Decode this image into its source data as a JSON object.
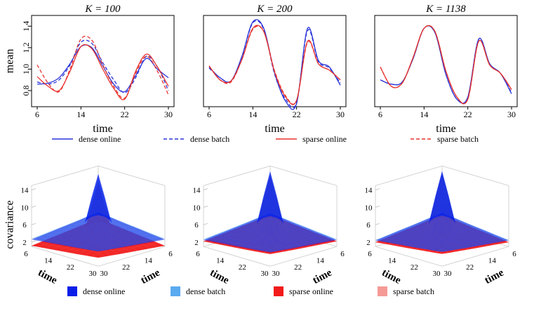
{
  "chart_data": [
    {
      "type": "line",
      "title": "K = 100",
      "xlabel": "time",
      "ylabel": "mean",
      "xlim": [
        6,
        30
      ],
      "ylim": [
        0.65,
        1.5
      ],
      "xticks": [
        "6",
        "14",
        "22",
        "30"
      ],
      "yticks": [
        "0.8",
        "1.0",
        "1.2",
        "1.4"
      ],
      "x": [
        6,
        8,
        10,
        12,
        14,
        16,
        18,
        20,
        22,
        24,
        26,
        28,
        30
      ],
      "series": [
        {
          "name": "dense online",
          "values": [
            0.86,
            0.87,
            0.92,
            1.05,
            1.21,
            1.2,
            1.03,
            0.86,
            0.79,
            0.94,
            1.1,
            1.0,
            0.92
          ]
        },
        {
          "name": "dense batch",
          "values": [
            0.88,
            0.86,
            0.9,
            1.04,
            1.25,
            1.24,
            1.06,
            0.9,
            0.78,
            0.92,
            1.12,
            1.02,
            0.8
          ]
        },
        {
          "name": "sparse online",
          "values": [
            0.93,
            0.84,
            0.8,
            0.98,
            1.21,
            1.19,
            1.0,
            0.82,
            0.72,
            0.98,
            1.14,
            1.02,
            0.84
          ]
        },
        {
          "name": "sparse batch",
          "values": [
            1.04,
            0.87,
            0.79,
            1.0,
            1.28,
            1.27,
            1.04,
            0.84,
            0.73,
            0.96,
            1.12,
            0.98,
            0.76
          ]
        }
      ]
    },
    {
      "type": "line",
      "title": "K = 200",
      "xlabel": "time",
      "xlim": [
        6,
        30
      ],
      "ylim": [
        0.65,
        1.5
      ],
      "xticks": [
        "6",
        "14",
        "22",
        "30"
      ],
      "x": [
        6,
        8,
        10,
        12,
        14,
        16,
        18,
        20,
        22,
        24,
        26,
        28,
        30
      ],
      "series": [
        {
          "name": "dense online",
          "values": [
            1.02,
            0.92,
            0.89,
            1.12,
            1.44,
            1.38,
            0.96,
            0.7,
            0.68,
            1.38,
            1.08,
            1.02,
            0.85
          ]
        },
        {
          "name": "dense batch",
          "values": [
            1.01,
            0.92,
            0.89,
            1.11,
            1.43,
            1.37,
            0.95,
            0.72,
            0.69,
            1.36,
            1.07,
            1.01,
            0.87
          ]
        },
        {
          "name": "sparse online",
          "values": [
            1.03,
            0.9,
            0.89,
            1.09,
            1.38,
            1.35,
            0.97,
            0.74,
            0.71,
            1.26,
            1.05,
            0.99,
            0.9
          ]
        },
        {
          "name": "sparse batch",
          "values": [
            1.03,
            0.9,
            0.88,
            1.09,
            1.37,
            1.35,
            0.98,
            0.75,
            0.71,
            1.25,
            1.05,
            0.99,
            0.9
          ]
        }
      ]
    },
    {
      "type": "line",
      "title": "K = 1138",
      "xlabel": "time",
      "xlim": [
        6,
        30
      ],
      "ylim": [
        0.65,
        1.5
      ],
      "xticks": [
        "6",
        "14",
        "22",
        "30"
      ],
      "x": [
        6,
        8,
        10,
        12,
        14,
        16,
        18,
        20,
        22,
        24,
        26,
        28,
        30
      ],
      "series": [
        {
          "name": "dense online",
          "values": [
            0.9,
            0.86,
            0.88,
            1.1,
            1.38,
            1.34,
            0.95,
            0.72,
            0.74,
            1.28,
            1.05,
            0.96,
            0.77
          ]
        },
        {
          "name": "dense batch",
          "values": [
            0.9,
            0.86,
            0.88,
            1.1,
            1.38,
            1.34,
            0.95,
            0.72,
            0.74,
            1.28,
            1.05,
            0.96,
            0.78
          ]
        },
        {
          "name": "sparse online",
          "values": [
            1.02,
            0.84,
            0.87,
            1.11,
            1.38,
            1.35,
            0.98,
            0.74,
            0.72,
            1.26,
            1.04,
            0.96,
            0.81
          ]
        },
        {
          "name": "sparse batch",
          "values": [
            1.02,
            0.84,
            0.87,
            1.11,
            1.38,
            1.35,
            0.98,
            0.74,
            0.72,
            1.26,
            1.04,
            0.96,
            0.81
          ]
        }
      ]
    },
    {
      "type": "surface3d",
      "zlabel": "covariance",
      "axis_label": "time",
      "zticks": [
        "2",
        "6",
        "10",
        "14"
      ],
      "axis_ticks": [
        "6",
        "14",
        "22",
        "30"
      ],
      "x": [
        6,
        14,
        22,
        30
      ],
      "y": [
        6,
        14,
        22,
        30
      ],
      "series": [
        {
          "name": "dense online",
          "peak": 13,
          "shoulder": 7.5,
          "edge": 2.6
        },
        {
          "name": "dense batch",
          "peak": 12.5,
          "shoulder": 7.2,
          "edge": 2.8
        },
        {
          "name": "sparse online",
          "peak": 11,
          "shoulder": 6,
          "edge": 1.2
        },
        {
          "name": "sparse batch",
          "peak": 11,
          "shoulder": 6,
          "edge": 1.2
        }
      ]
    },
    {
      "type": "surface3d",
      "axis_label": "time",
      "zticks": [
        "2",
        "6",
        "10",
        "14"
      ],
      "axis_ticks": [
        "6",
        "14",
        "22",
        "30"
      ],
      "x": [
        6,
        14,
        22,
        30
      ],
      "y": [
        6,
        14,
        22,
        30
      ],
      "series": [
        {
          "name": "dense online",
          "peak": 14,
          "shoulder": 7,
          "edge": 2.5
        },
        {
          "name": "dense batch",
          "peak": 13.5,
          "shoulder": 7,
          "edge": 2.7
        },
        {
          "name": "sparse online",
          "peak": 13,
          "shoulder": 6.5,
          "edge": 2.2
        },
        {
          "name": "sparse batch",
          "peak": 13,
          "shoulder": 6.5,
          "edge": 2.2
        }
      ]
    },
    {
      "type": "surface3d",
      "axis_label": "time",
      "zticks": [
        "2",
        "6",
        "10",
        "14"
      ],
      "axis_ticks": [
        "6",
        "14",
        "22",
        "30"
      ],
      "x": [
        6,
        14,
        22,
        30
      ],
      "y": [
        6,
        14,
        22,
        30
      ],
      "series": [
        {
          "name": "dense online",
          "peak": 13.5,
          "shoulder": 7.5,
          "edge": 2.4
        },
        {
          "name": "dense batch",
          "peak": 13.3,
          "shoulder": 7.4,
          "edge": 2.5
        },
        {
          "name": "sparse online",
          "peak": 13,
          "shoulder": 7,
          "edge": 2.0
        },
        {
          "name": "sparse batch",
          "peak": 13,
          "shoulder": 7,
          "edge": 2.0
        }
      ]
    }
  ],
  "legend_lines": [
    {
      "label": "dense  online",
      "color": "#2a35d8",
      "dash": "solid"
    },
    {
      "label": "dense  batch",
      "color": "#2a35d8",
      "dash": "dashed"
    },
    {
      "label": "sparse  online",
      "color": "#e8332e",
      "dash": "solid"
    },
    {
      "label": "sparse  batch",
      "color": "#e8332e",
      "dash": "dashed"
    }
  ],
  "legend_surfaces": [
    {
      "label": "dense   online",
      "color": "#0a1ee8"
    },
    {
      "label": "dense  batch",
      "color": "#5aaaf0"
    },
    {
      "label": "sparse  online",
      "color": "#f21a1a"
    },
    {
      "label": "sparse  batch",
      "color": "#f59a96"
    }
  ],
  "colors": {
    "blue": "#2a35d8",
    "red": "#e8332e",
    "frame": "#000000",
    "grid3d": "#c8c8c8"
  }
}
